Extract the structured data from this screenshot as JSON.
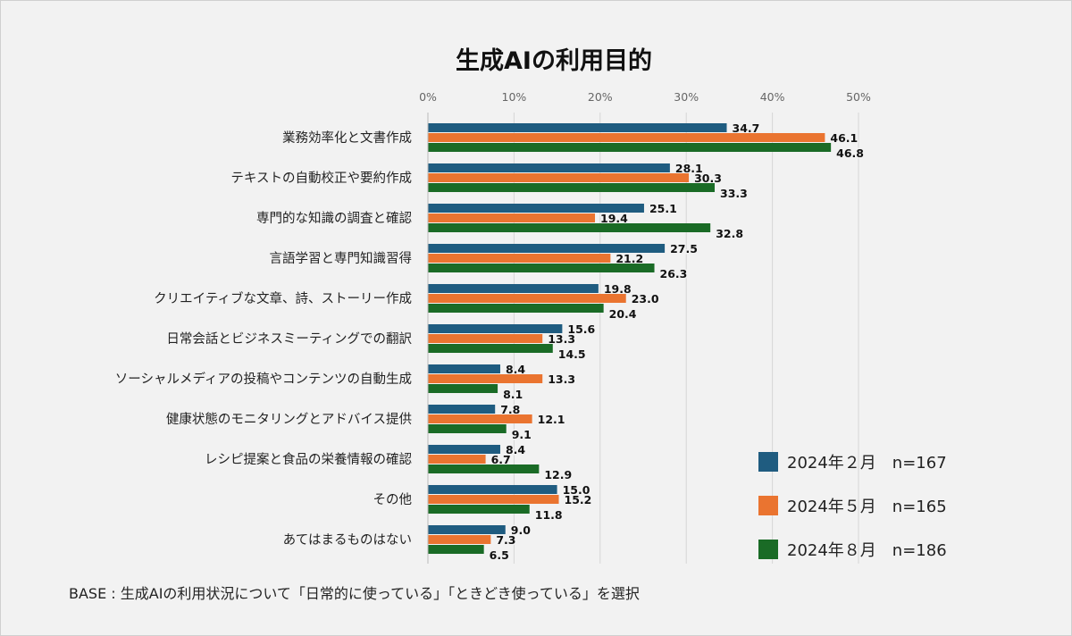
{
  "chart_data": {
    "type": "bar",
    "orientation": "horizontal",
    "title": "生成AIの利用目的",
    "xlim": [
      0,
      50
    ],
    "x_ticks": [
      "0%",
      "10%",
      "20%",
      "30%",
      "40%",
      "50%"
    ],
    "categories": [
      "業務効率化と文書作成",
      "テキストの自動校正や要約作成",
      "専門的な知識の調査と確認",
      "言語学習と専門知識習得",
      "クリエイティブな文章、詩、ストーリー作成",
      "日常会話とビジネスミーティングでの翻訳",
      "ソーシャルメディアの投稿やコンテンツの自動生成",
      "健康状態のモニタリングとアドバイス提供",
      "レシピ提案と食品の栄養情報の確認",
      "その他",
      "あてはまるものはない"
    ],
    "series": [
      {
        "name": "2024年２月　n=167",
        "color": "#1f5c80",
        "values": [
          34.7,
          28.1,
          25.1,
          27.5,
          19.8,
          15.6,
          8.4,
          7.8,
          8.4,
          15.0,
          9.0
        ],
        "labels": [
          "34.7",
          "28.1",
          "25.1",
          "27.5",
          "19.8",
          "15.6",
          "8.4",
          "7.8",
          "8.4",
          "15.0",
          "9.0"
        ]
      },
      {
        "name": "2024年５月　n=165",
        "color": "#ea7430",
        "values": [
          46.1,
          30.3,
          19.4,
          21.2,
          23.0,
          13.3,
          13.3,
          12.1,
          6.7,
          15.2,
          7.3
        ],
        "labels": [
          "46.1",
          "30.3",
          "19.4",
          "21.2",
          "23.0",
          "13.3",
          "13.3",
          "12.1",
          "6.7",
          "15.2",
          "7.3"
        ]
      },
      {
        "name": "2024年８月　n=186",
        "color": "#1a6b26",
        "values": [
          46.8,
          33.3,
          32.8,
          26.3,
          20.4,
          14.5,
          8.1,
          9.1,
          12.9,
          11.8,
          6.5
        ],
        "labels": [
          "46.8",
          "33.3",
          "32.8",
          "26.3",
          "20.4",
          "14.5",
          "8.1",
          "9.1",
          "12.9",
          "11.8",
          "6.5"
        ]
      }
    ],
    "legend_position": "bottom-right",
    "grid": true
  },
  "footnote": "BASE : 生成AIの利用状況について「日常的に使っている」「ときどき使っている」を選択"
}
